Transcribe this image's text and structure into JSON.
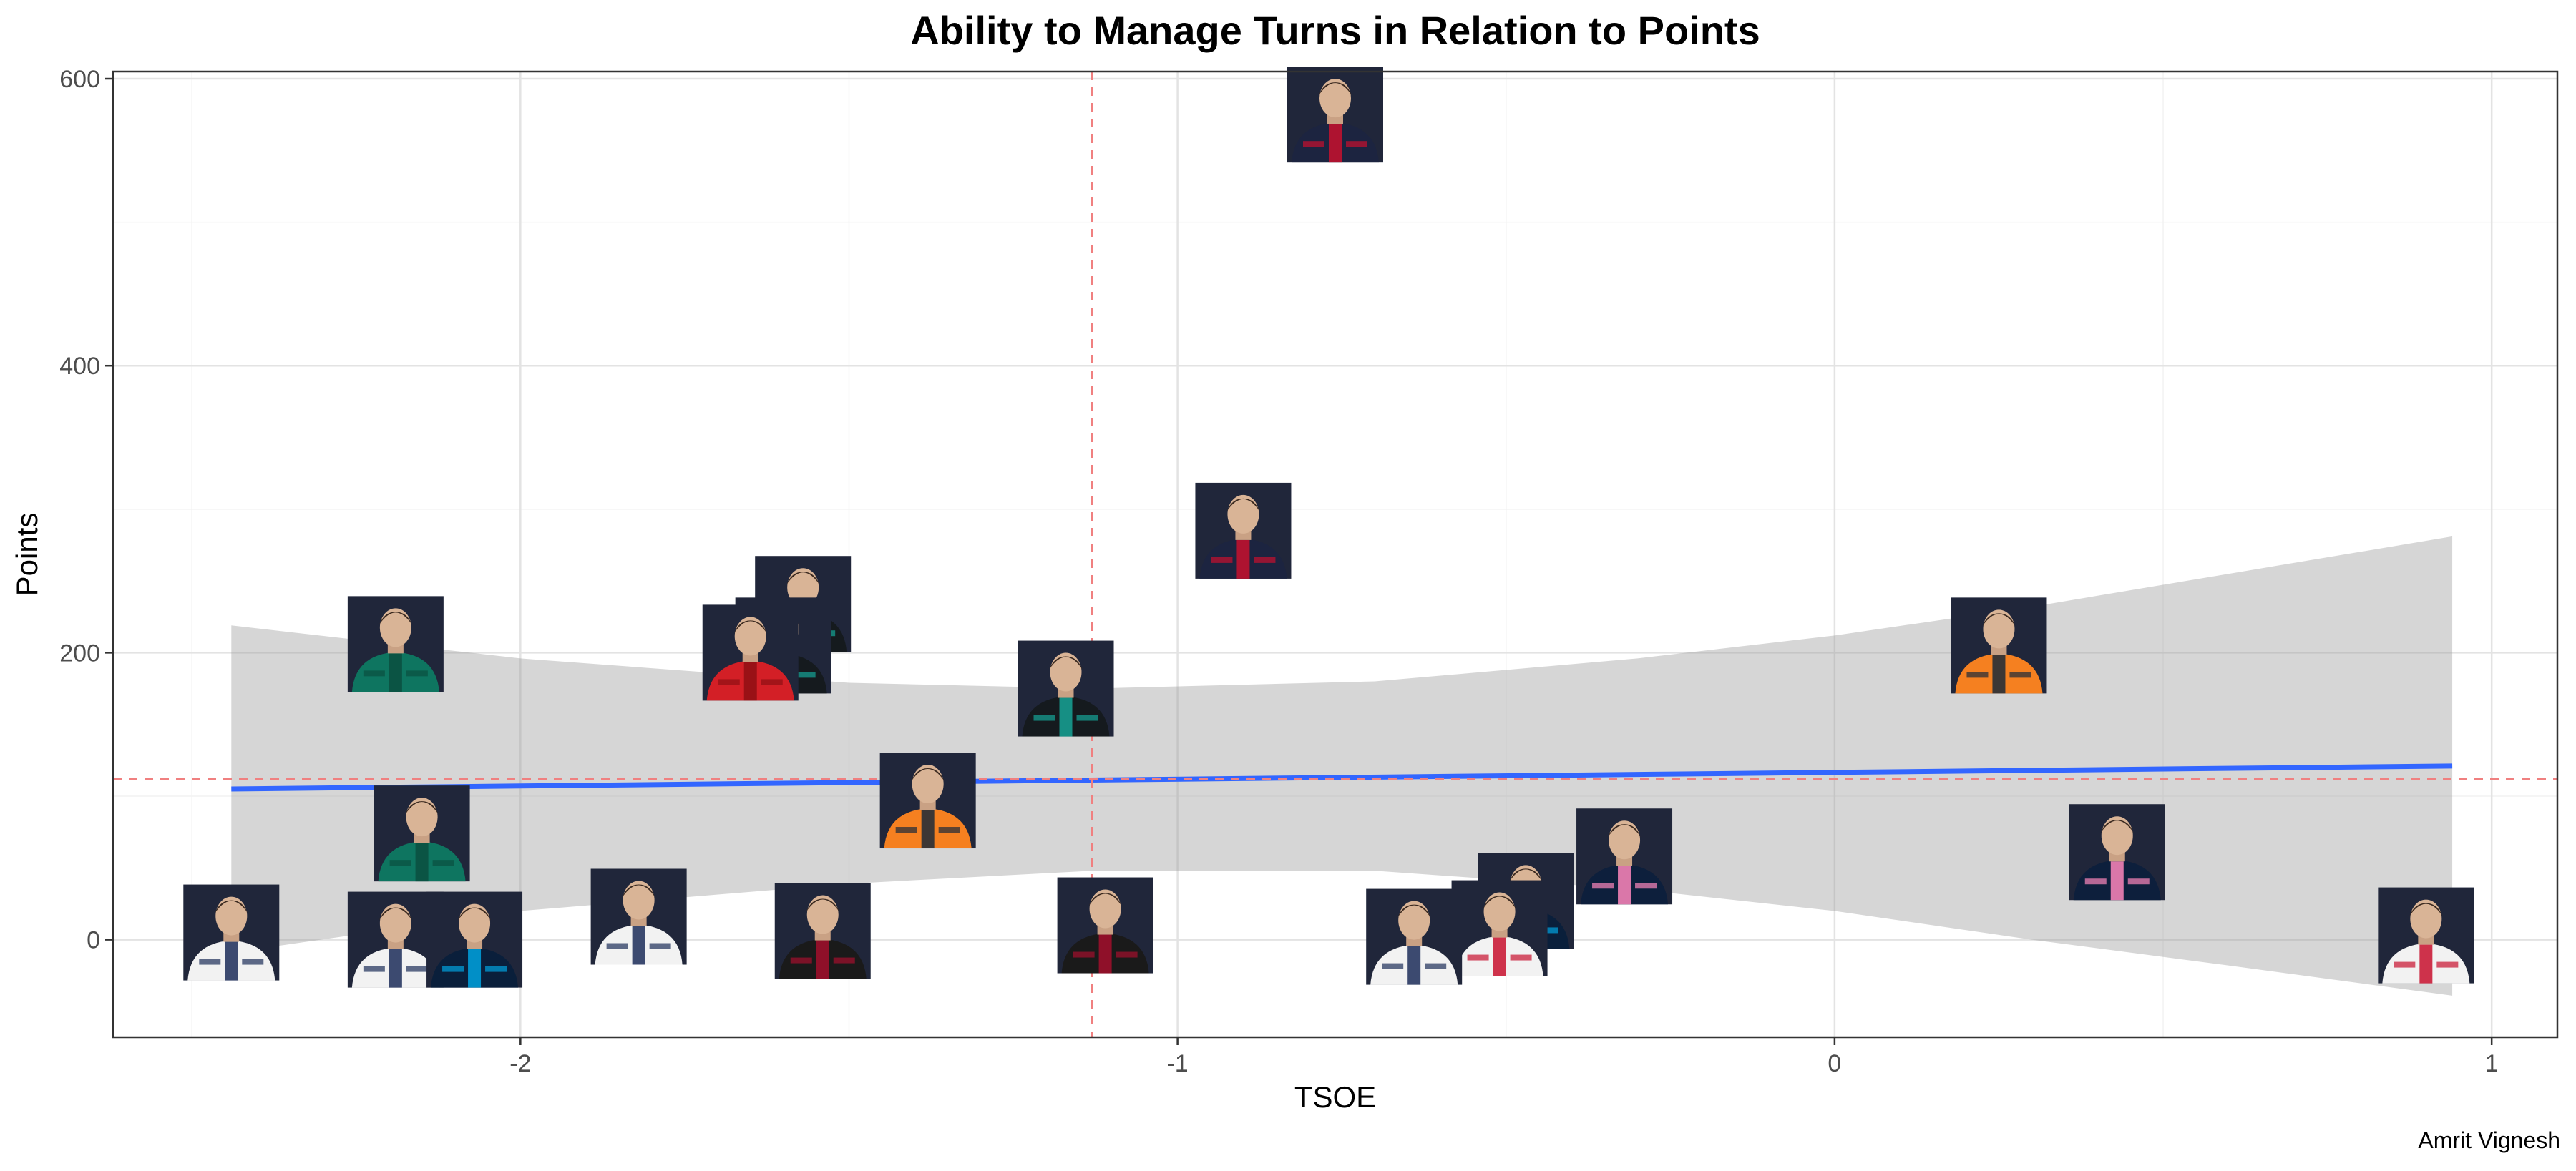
{
  "caption": "Amrit Vignesh",
  "chart_data": {
    "type": "scatter",
    "title": "Ability to Manage Turns in Relation to Points",
    "xlabel": "TSOE",
    "ylabel": "Points",
    "xlim": [
      -2.62,
      1.1
    ],
    "ylim": [
      -68,
      605
    ],
    "x_ticks": [
      -2,
      -1,
      0,
      1
    ],
    "x_tick_labels": [
      "-2",
      "-1",
      "0",
      "1"
    ],
    "y_ticks": [
      0,
      200,
      400,
      600
    ],
    "y_tick_labels": [
      "0",
      "200",
      "400",
      "600"
    ],
    "x_minor_ticks": [
      -2.5,
      -1.5,
      -0.5,
      0.5
    ],
    "y_minor_ticks": [
      100,
      300,
      500
    ],
    "grid": true,
    "reference_lines": {
      "vertical_x": -1.13,
      "horizontal_y": 112
    },
    "trend_line": {
      "x": [
        -2.44,
        0.94
      ],
      "y": [
        105,
        121
      ]
    },
    "confidence_band": {
      "x": [
        -2.44,
        -2.0,
        -1.5,
        -1.13,
        -0.7,
        -0.3,
        0.0,
        0.3,
        0.6,
        0.94
      ],
      "upper": [
        219,
        196,
        179,
        175,
        180,
        196,
        212,
        232,
        255,
        281
      ],
      "lower": [
        -9,
        20,
        39,
        48,
        48,
        35,
        20,
        0,
        -18,
        -39
      ]
    },
    "points": [
      {
        "x": -0.76,
        "y": 575,
        "jersey": "#1c2440",
        "accent": "#c8102e"
      },
      {
        "x": -0.9,
        "y": 285,
        "jersey": "#1c2440",
        "accent": "#c8102e"
      },
      {
        "x": -2.19,
        "y": 206,
        "jersey": "#0e7560",
        "accent": "#0a4f40"
      },
      {
        "x": -1.57,
        "y": 234,
        "jersey": "#151a1e",
        "accent": "#16a597"
      },
      {
        "x": -1.6,
        "y": 205,
        "jersey": "#151a1e",
        "accent": "#16a597"
      },
      {
        "x": -1.65,
        "y": 200,
        "jersey": "#d31f26",
        "accent": "#8e0f14"
      },
      {
        "x": -1.17,
        "y": 175,
        "jersey": "#151a1e",
        "accent": "#16a597"
      },
      {
        "x": 0.25,
        "y": 205,
        "jersey": "#f58020",
        "accent": "#1b2a3a"
      },
      {
        "x": -1.38,
        "y": 97,
        "jersey": "#f58020",
        "accent": "#1b2a3a"
      },
      {
        "x": -2.15,
        "y": 74,
        "jersey": "#0e7560",
        "accent": "#0a4f40"
      },
      {
        "x": 0.43,
        "y": 61,
        "jersey": "#0d1f3c",
        "accent": "#ff87bc"
      },
      {
        "x": -0.32,
        "y": 58,
        "jersey": "#0d1f3c",
        "accent": "#ff87bc"
      },
      {
        "x": -2.44,
        "y": 5,
        "jersey": "#f2f2f2",
        "accent": "#1c2d59"
      },
      {
        "x": -2.19,
        "y": 0,
        "jersey": "#f2f2f2",
        "accent": "#1c2d59"
      },
      {
        "x": -2.07,
        "y": 0,
        "jersey": "#0a1f3b",
        "accent": "#00a3e0"
      },
      {
        "x": -1.82,
        "y": 16,
        "jersey": "#f2f2f2",
        "accent": "#1c2d59"
      },
      {
        "x": -1.54,
        "y": 6,
        "jersey": "#1a1a1a",
        "accent": "#a50f2d"
      },
      {
        "x": -1.11,
        "y": 10,
        "jersey": "#1a1a1a",
        "accent": "#a50f2d"
      },
      {
        "x": -0.47,
        "y": 27,
        "jersey": "#0a1f3b",
        "accent": "#00a3e0"
      },
      {
        "x": -0.51,
        "y": 8,
        "jersey": "#f2f2f2",
        "accent": "#c8102e"
      },
      {
        "x": -0.64,
        "y": 2,
        "jersey": "#f2f2f2",
        "accent": "#1c2d59"
      },
      {
        "x": 0.9,
        "y": 3,
        "jersey": "#f2f2f2",
        "accent": "#c8102e"
      }
    ]
  }
}
